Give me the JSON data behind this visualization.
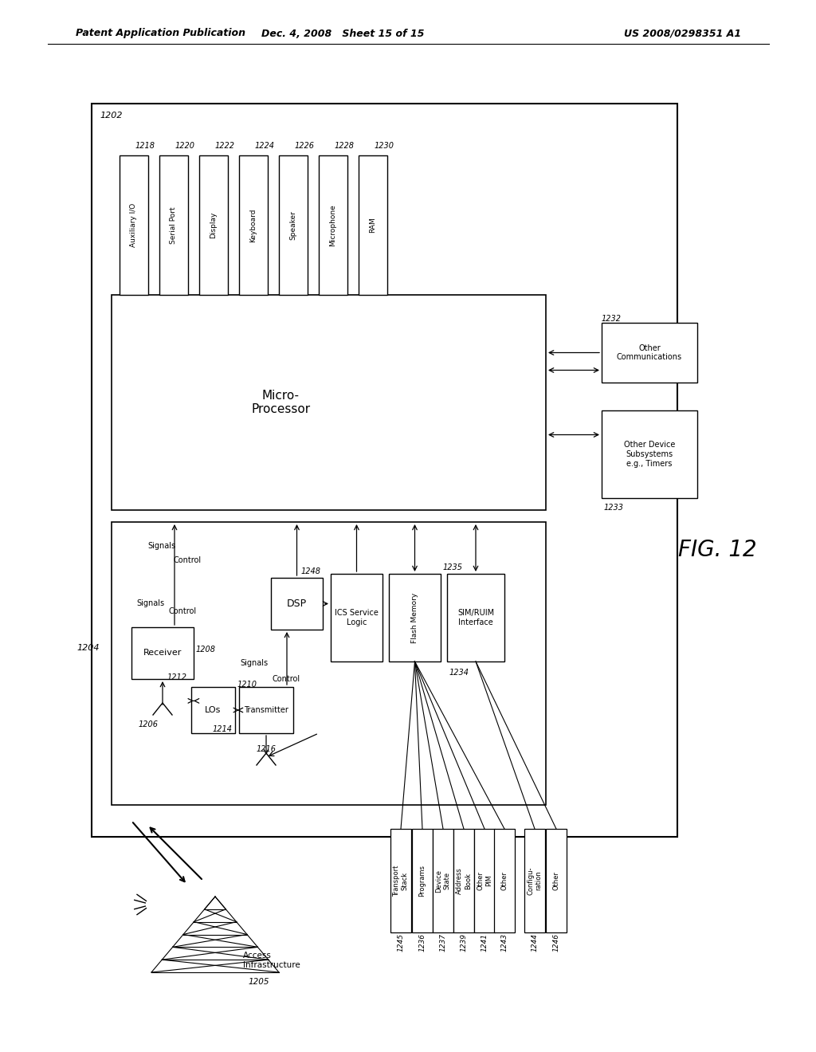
{
  "bg_color": "#ffffff",
  "header_left": "Patent Application Publication",
  "header_mid": "Dec. 4, 2008   Sheet 15 of 15",
  "header_right": "US 2008/0298351 A1",
  "fig_label": "FIG. 12"
}
